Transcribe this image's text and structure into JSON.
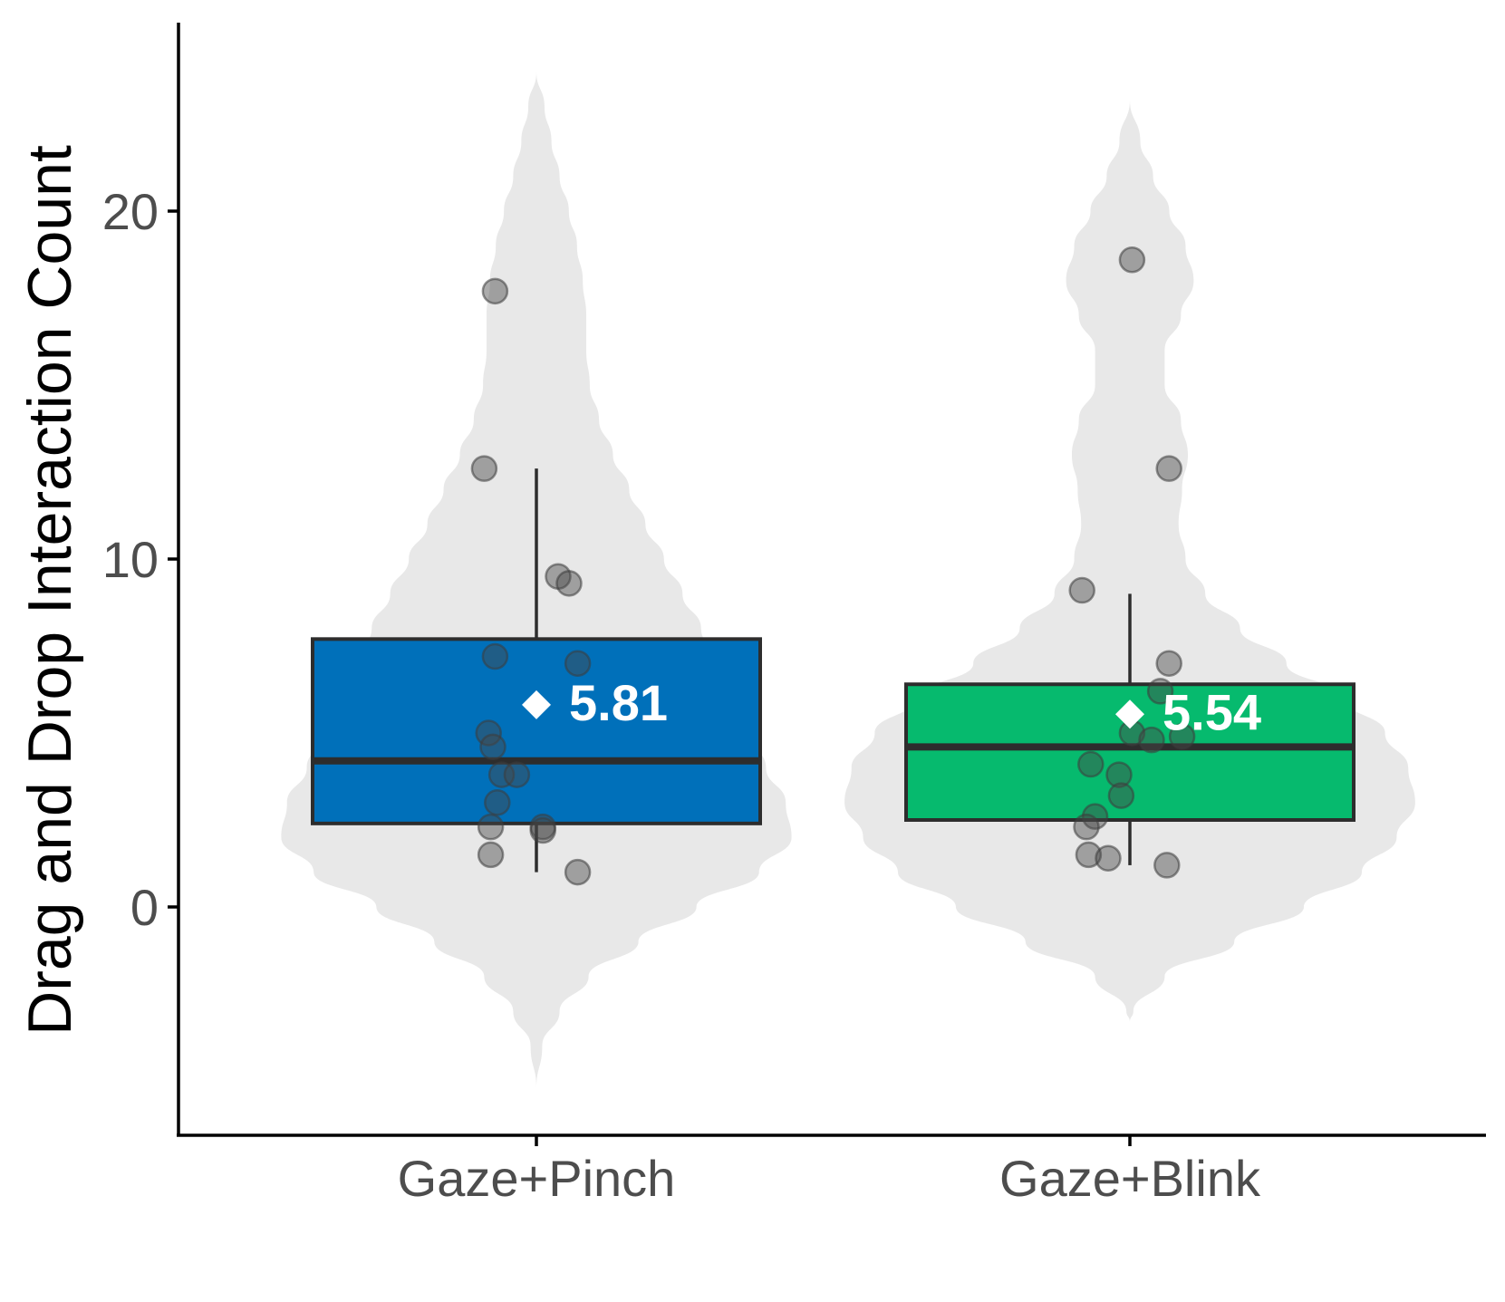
{
  "chart_data": {
    "type": "violin-box",
    "ylabel": "Drag and Drop Interaction Count",
    "xlabel": "",
    "ylim": [
      -6.5,
      25.5
    ],
    "yticks": [
      0,
      10,
      20
    ],
    "grid": false,
    "categories": [
      "Gaze+Pinch",
      "Gaze+Blink"
    ],
    "groups": [
      {
        "name": "Gaze+Pinch",
        "color": "#0070BA",
        "mean": 5.81,
        "mean_label": "5.81",
        "box": {
          "q1": 2.4,
          "median": 4.2,
          "q3": 7.7,
          "whisker_low": 1.0,
          "whisker_high": 12.6
        },
        "violin": {
          "y": [
            -5.2,
            -4.0,
            -3.0,
            -2.0,
            -1.0,
            0.0,
            1.0,
            2.0,
            3.0,
            4.0,
            5.0,
            6.0,
            7.0,
            8.0,
            9.0,
            10.0,
            11.0,
            12.0,
            13.0,
            14.0,
            15.0,
            16.0,
            17.0,
            18.0,
            19.0,
            20.0,
            21.0,
            22.0,
            23.0,
            24.0
          ],
          "half_width": [
            0.0,
            0.05,
            0.2,
            0.45,
            0.88,
            1.38,
            1.92,
            2.2,
            2.15,
            1.98,
            1.83,
            1.7,
            1.57,
            1.42,
            1.26,
            1.1,
            0.94,
            0.8,
            0.66,
            0.54,
            0.46,
            0.43,
            0.43,
            0.4,
            0.35,
            0.28,
            0.2,
            0.13,
            0.07,
            0.0
          ]
        },
        "points": [
          {
            "x": -0.19,
            "y": 17.7
          },
          {
            "x": -0.24,
            "y": 12.6
          },
          {
            "x": 0.1,
            "y": 9.5
          },
          {
            "x": 0.15,
            "y": 9.3
          },
          {
            "x": -0.19,
            "y": 7.2
          },
          {
            "x": 0.19,
            "y": 7.0
          },
          {
            "x": -0.22,
            "y": 5.0
          },
          {
            "x": -0.2,
            "y": 4.6
          },
          {
            "x": -0.16,
            "y": 3.8
          },
          {
            "x": -0.09,
            "y": 3.8
          },
          {
            "x": -0.18,
            "y": 3.0
          },
          {
            "x": -0.21,
            "y": 2.3
          },
          {
            "x": 0.03,
            "y": 2.3
          },
          {
            "x": 0.03,
            "y": 2.2
          },
          {
            "x": -0.21,
            "y": 1.5
          },
          {
            "x": 0.19,
            "y": 1.0
          }
        ]
      },
      {
        "name": "Gaze+Blink",
        "color": "#06BA6E",
        "mean": 5.54,
        "mean_label": "5.54",
        "box": {
          "q1": 2.5,
          "median": 4.6,
          "q3": 6.4,
          "whisker_low": 1.2,
          "whisker_high": 9.0
        },
        "violin": {
          "y": [
            -3.3,
            -3.0,
            -2.0,
            -1.0,
            0.0,
            1.0,
            2.0,
            3.0,
            4.0,
            5.0,
            6.0,
            7.0,
            8.0,
            9.0,
            10.0,
            11.0,
            12.0,
            13.0,
            14.0,
            15.0,
            16.0,
            17.0,
            18.0,
            19.0,
            20.0,
            21.0,
            22.0,
            23.2
          ],
          "half_width": [
            0.0,
            0.03,
            0.3,
            0.9,
            1.5,
            2.0,
            2.3,
            2.46,
            2.4,
            2.2,
            1.85,
            1.35,
            0.95,
            0.65,
            0.48,
            0.42,
            0.45,
            0.5,
            0.44,
            0.3,
            0.3,
            0.44,
            0.55,
            0.48,
            0.34,
            0.2,
            0.09,
            0.0
          ]
        },
        "points": [
          {
            "x": 0.01,
            "y": 18.6
          },
          {
            "x": 0.18,
            "y": 12.6
          },
          {
            "x": -0.22,
            "y": 9.1
          },
          {
            "x": 0.18,
            "y": 7.0
          },
          {
            "x": 0.14,
            "y": 6.2
          },
          {
            "x": 0.01,
            "y": 5.0
          },
          {
            "x": 0.1,
            "y": 4.8
          },
          {
            "x": 0.24,
            "y": 4.9
          },
          {
            "x": -0.18,
            "y": 4.1
          },
          {
            "x": -0.05,
            "y": 3.8
          },
          {
            "x": -0.04,
            "y": 3.2
          },
          {
            "x": -0.16,
            "y": 2.6
          },
          {
            "x": -0.2,
            "y": 2.3
          },
          {
            "x": -0.19,
            "y": 1.5
          },
          {
            "x": -0.1,
            "y": 1.4
          },
          {
            "x": 0.17,
            "y": 1.2
          }
        ]
      }
    ]
  }
}
